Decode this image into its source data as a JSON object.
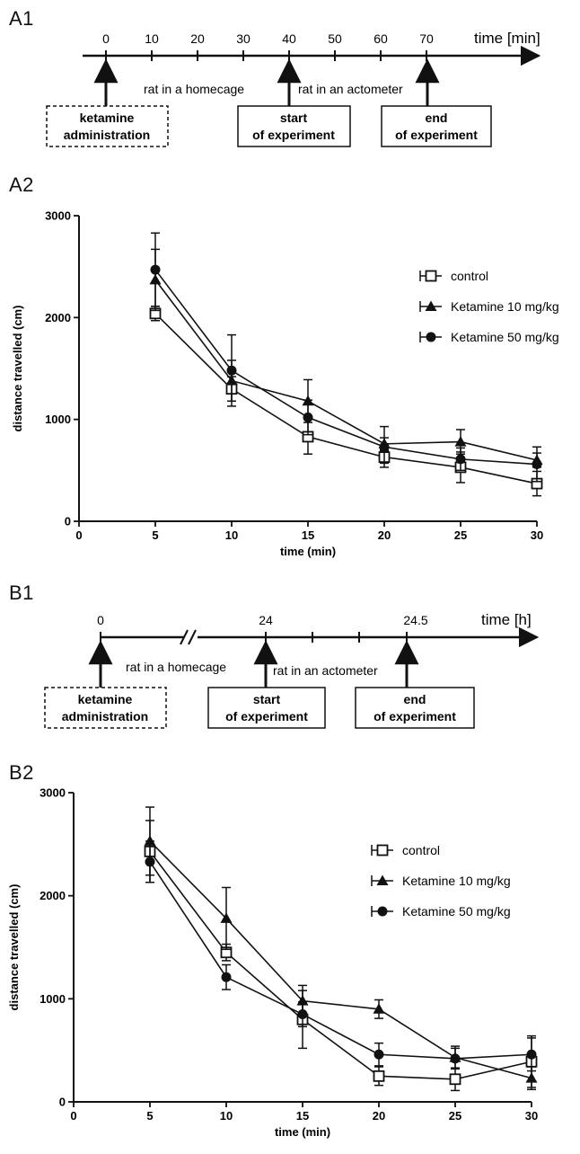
{
  "timeline_a": {
    "panel_label": "A1",
    "unit_label": "time [min]",
    "ticks": [
      "0",
      "10",
      "20",
      "30",
      "40",
      "50",
      "60",
      "70"
    ],
    "phase_1": "rat in a homecage",
    "phase_2": "rat in an actometer",
    "box_1": {
      "line1": "ketamine",
      "line2": "administration"
    },
    "box_2": {
      "line1": "start",
      "line2": "of experiment"
    },
    "box_3": {
      "line1": "end",
      "line2": "of experiment"
    }
  },
  "timeline_b": {
    "panel_label": "B1",
    "unit_label": "time [h]",
    "tick_0": "0",
    "tick_24": "24",
    "tick_24_5": "24.5",
    "phase_1": "rat in a homecage",
    "phase_2": "rat in an actometer",
    "box_1": {
      "line1": "ketamine",
      "line2": "administration"
    },
    "box_2": {
      "line1": "start",
      "line2": "of experiment"
    },
    "box_3": {
      "line1": "end",
      "line2": "of experiment"
    }
  },
  "chart_data": [
    {
      "panel_label": "A2",
      "type": "line",
      "xlabel": "time (min)",
      "ylabel": "distance travelled (cm)",
      "xlim": [
        0,
        30
      ],
      "ylim": [
        0,
        3000
      ],
      "xticks": [
        0,
        5,
        10,
        15,
        20,
        25,
        30
      ],
      "yticks": [
        0,
        1000,
        2000,
        3000
      ],
      "legend_position": "right",
      "series": [
        {
          "name": "control",
          "marker": "square-open",
          "x": [
            5,
            10,
            15,
            20,
            25,
            30
          ],
          "y": [
            2040,
            1300,
            830,
            630,
            530,
            370
          ],
          "err": [
            70,
            120,
            170,
            60,
            150,
            120
          ]
        },
        {
          "name": "Ketamine 10 mg/kg",
          "marker": "triangle",
          "x": [
            5,
            10,
            15,
            20,
            25,
            30
          ],
          "y": [
            2370,
            1380,
            1180,
            760,
            780,
            600
          ],
          "err": [
            300,
            200,
            210,
            60,
            120,
            70
          ]
        },
        {
          "name": "Ketamine 50 mg/kg",
          "marker": "circle",
          "x": [
            5,
            10,
            15,
            20,
            25,
            30
          ],
          "y": [
            2470,
            1480,
            1020,
            730,
            610,
            560
          ],
          "err": [
            360,
            350,
            170,
            200,
            110,
            170
          ]
        }
      ]
    },
    {
      "panel_label": "B2",
      "type": "line",
      "xlabel": "time (min)",
      "ylabel": "distance travelled (cm)",
      "xlim": [
        0,
        30
      ],
      "ylim": [
        0,
        3000
      ],
      "xticks": [
        0,
        5,
        10,
        15,
        20,
        25,
        30
      ],
      "yticks": [
        0,
        1000,
        2000,
        3000
      ],
      "legend_position": "top-right",
      "series": [
        {
          "name": "control",
          "marker": "square-open",
          "x": [
            5,
            10,
            15,
            20,
            25,
            30
          ],
          "y": [
            2430,
            1450,
            800,
            250,
            220,
            390
          ],
          "err": [
            300,
            80,
            280,
            90,
            110,
            250
          ]
        },
        {
          "name": "Ketamine 10 mg/kg",
          "marker": "triangle",
          "x": [
            5,
            10,
            15,
            20,
            25,
            30
          ],
          "y": [
            2530,
            1780,
            980,
            900,
            430,
            230
          ],
          "err": [
            330,
            300,
            150,
            90,
            110,
            110
          ]
        },
        {
          "name": "Ketamine 50 mg/kg",
          "marker": "circle",
          "x": [
            5,
            10,
            15,
            20,
            25,
            30
          ],
          "y": [
            2330,
            1210,
            850,
            460,
            420,
            460
          ],
          "err": [
            200,
            120,
            120,
            110,
            100,
            160
          ]
        }
      ]
    }
  ]
}
